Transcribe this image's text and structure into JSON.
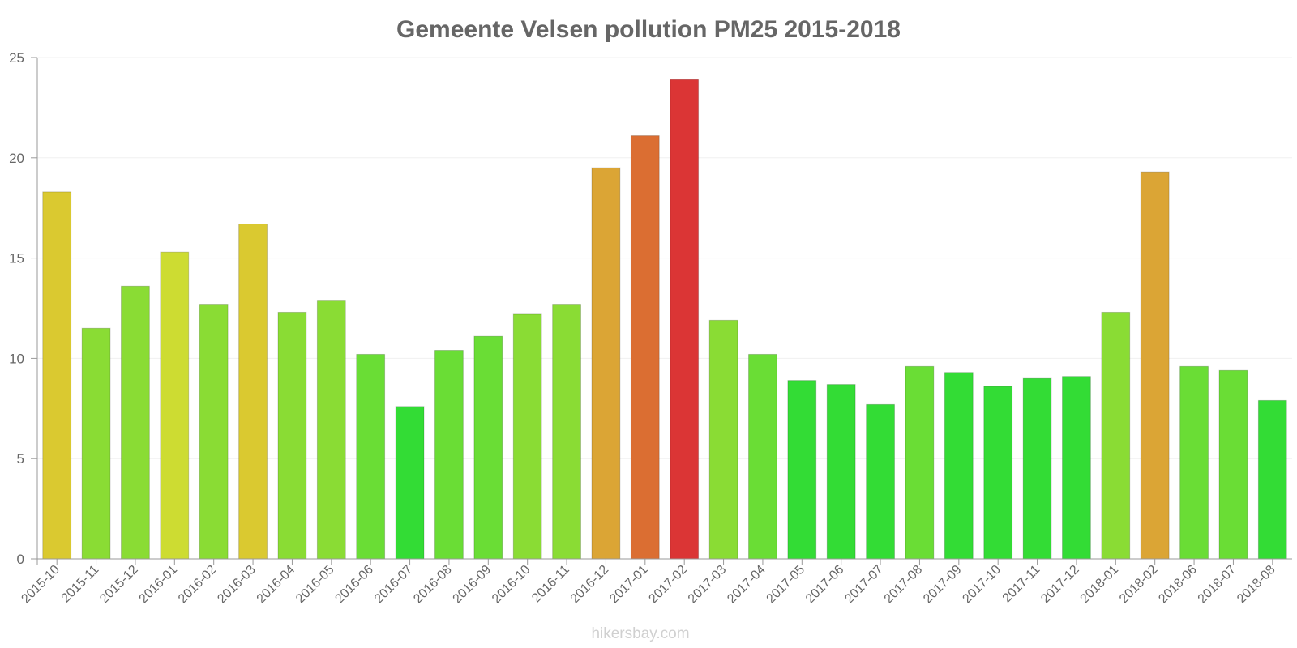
{
  "chart_data": {
    "type": "bar",
    "title": "Gemeente Velsen pollution PM25 2015-2018",
    "xlabel": "",
    "ylabel": "",
    "ylim": [
      0,
      25
    ],
    "yticks": [
      0,
      5,
      10,
      15,
      20,
      25
    ],
    "grid": true,
    "categories": [
      "2015-10",
      "2015-11",
      "2015-12",
      "2016-01",
      "2016-02",
      "2016-03",
      "2016-04",
      "2016-05",
      "2016-06",
      "2016-07",
      "2016-08",
      "2016-09",
      "2016-10",
      "2016-11",
      "2016-12",
      "2017-01",
      "2017-02",
      "2017-03",
      "2017-04",
      "2017-05",
      "2017-06",
      "2017-07",
      "2017-08",
      "2017-09",
      "2017-10",
      "2017-11",
      "2017-12",
      "2018-01",
      "2018-02",
      "2018-06",
      "2018-07",
      "2018-08"
    ],
    "values": [
      18.3,
      11.5,
      13.6,
      15.3,
      12.7,
      16.7,
      12.3,
      12.9,
      10.2,
      7.6,
      10.4,
      11.1,
      12.2,
      12.7,
      19.5,
      21.1,
      23.9,
      11.9,
      10.2,
      8.9,
      8.7,
      7.7,
      9.6,
      9.3,
      8.6,
      9.0,
      9.1,
      12.3,
      19.3,
      9.6,
      9.4,
      7.9
    ],
    "colors": [
      "#DAC930",
      "#8ADC34",
      "#8ADC34",
      "#CDDC32",
      "#8ADC34",
      "#DAC930",
      "#8ADC34",
      "#8ADC34",
      "#6ADD35",
      "#33DC35",
      "#6ADD35",
      "#6ADD35",
      "#8ADC34",
      "#8ADC34",
      "#DBA535",
      "#DB6E32",
      "#DB3535",
      "#8ADC34",
      "#6ADD35",
      "#33DC35",
      "#33DC35",
      "#33DC35",
      "#6ADD35",
      "#33DC35",
      "#33DC35",
      "#33DC35",
      "#33DC35",
      "#8ADC34",
      "#DBA535",
      "#6ADD35",
      "#6ADD35",
      "#33DC35"
    ]
  },
  "footer": {
    "watermark": "hikersbay.com"
  },
  "style": {
    "axis_color": "#999999",
    "grid_color": "#f0f0f0",
    "text_color": "#666666",
    "watermark_color": "#d0d0d0"
  }
}
